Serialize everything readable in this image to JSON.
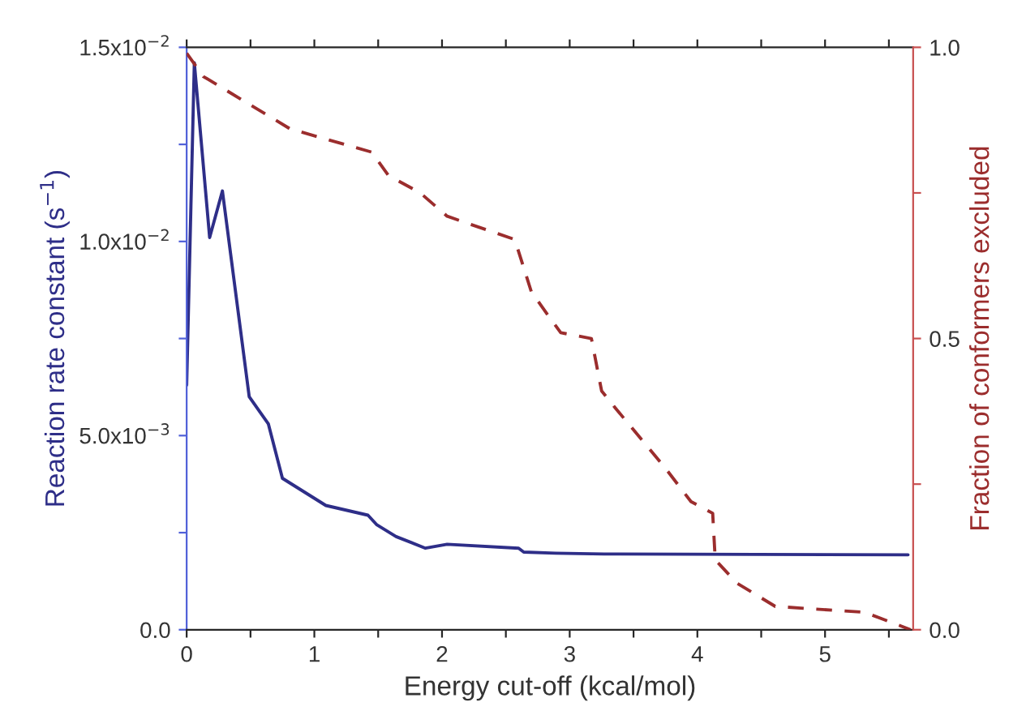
{
  "chart_data": {
    "type": "line",
    "xlabel": "Energy cut-off (kcal/mol)",
    "ylabel": "Reaction rate constant (s$^{−1}$)",
    "y2label": "Fraction of conformers excluded",
    "xlim": [
      0,
      5.69
    ],
    "xticks": [
      0,
      {
        "value": 0.5,
        "label": null
      },
      1,
      {
        "value": 1.5,
        "label": null
      },
      2,
      {
        "value": 2.5,
        "label": null
      },
      3,
      {
        "value": 3.5,
        "label": null
      },
      4,
      {
        "value": 4.5,
        "label": null
      },
      5,
      {
        "value": 5.5,
        "label": null
      }
    ],
    "ylim": [
      0,
      0.015
    ],
    "yticks": [
      {
        "value": 0,
        "label": "0.0"
      },
      {
        "value": 0.0025,
        "label": null
      },
      {
        "value": 0.005,
        "label": "5.0x10$^{−3}$"
      },
      {
        "value": 0.0075,
        "label": null
      },
      {
        "value": 0.01,
        "label": "1.0x10$^{−2}$"
      },
      {
        "value": 0.0125,
        "label": null
      },
      {
        "value": 0.015,
        "label": "1.5x10$^{−2}$"
      }
    ],
    "y2lim": [
      0,
      1
    ],
    "y2ticks": [
      {
        "value": 0,
        "label": "0.0"
      },
      {
        "value": 0.25,
        "label": null
      },
      {
        "value": 0.5,
        "label": "0.5"
      },
      {
        "value": 0.75,
        "label": null
      },
      {
        "value": 1,
        "label": "1.0"
      }
    ],
    "grid": false,
    "legend": false,
    "marker": "none",
    "series": [
      {
        "color": "#2e2e88",
        "line_style": "solid",
        "x": [
          0,
          0.06,
          0.18,
          0.28,
          0.49,
          0.64,
          0.75,
          1.09,
          1.42,
          1.49,
          1.64,
          1.87,
          2.04,
          2.6,
          2.64,
          2.89,
          3.27,
          5.65
        ],
        "values": [
          0.0063,
          0.0146,
          0.0101,
          0.0113,
          0.006,
          0.0053,
          0.0039,
          0.0032,
          0.00295,
          0.0027,
          0.0024,
          0.0021,
          0.0022,
          0.0021,
          0.002,
          0.00197,
          0.00195,
          0.00193
        ]
      },
      {
        "color": "#9b2d2d",
        "line_style": "dashed",
        "axis": "y2",
        "x": [
          0,
          0.13,
          0.81,
          1.45,
          1.58,
          1.83,
          2.04,
          2.57,
          2.7,
          2.83,
          2.93,
          3.17,
          3.25,
          3.36,
          3.74,
          3.95,
          4.12,
          4.14,
          4.31,
          4.61,
          5.31,
          5.67
        ],
        "values": [
          0.99,
          0.95,
          0.86,
          0.82,
          0.78,
          0.75,
          0.71,
          0.67,
          0.58,
          0.54,
          0.51,
          0.5,
          0.41,
          0.38,
          0.28,
          0.22,
          0.2,
          0.12,
          0.08,
          0.04,
          0.03,
          0
        ]
      }
    ]
  }
}
